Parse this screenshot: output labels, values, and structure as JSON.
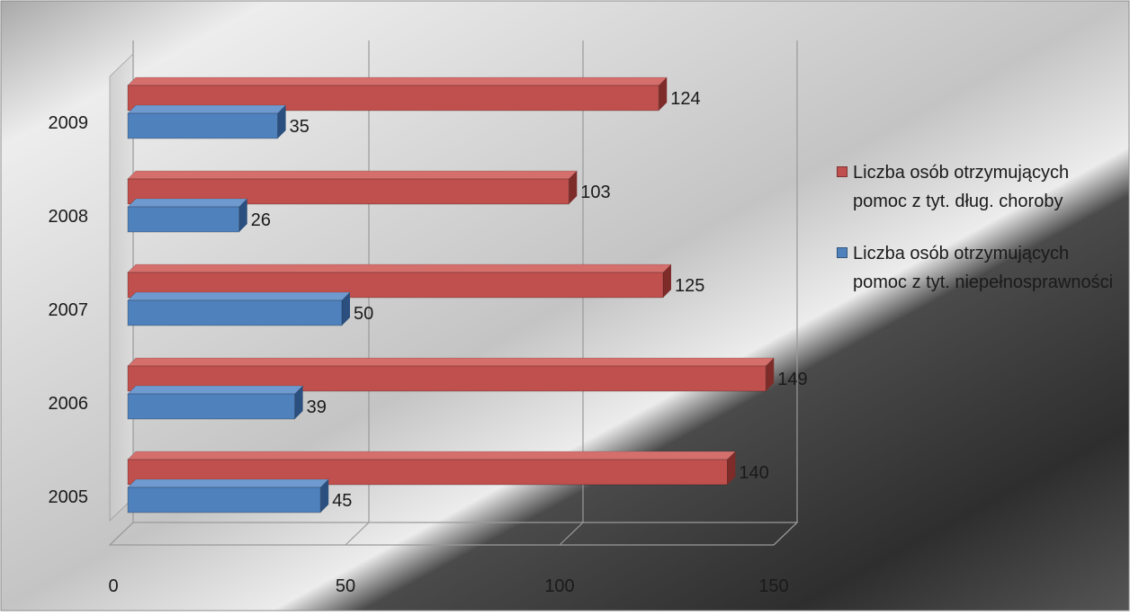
{
  "chart_data": {
    "type": "bar",
    "orientation": "horizontal",
    "three_d": true,
    "categories": [
      "2005",
      "2006",
      "2007",
      "2008",
      "2009"
    ],
    "series": [
      {
        "name": "Liczba osób otrzymujących pomoc z tyt. niepełnosprawności",
        "values": [
          45,
          39,
          50,
          26,
          35
        ],
        "color": "#4f81bd",
        "top_color": "#6f9ad0",
        "side_color": "#2b4f7e"
      },
      {
        "name": "Liczba osób otrzymujących pomoc z tyt. dług. choroby",
        "values": [
          140,
          149,
          125,
          103,
          124
        ],
        "color": "#c0504d",
        "top_color": "#d46f6c",
        "side_color": "#7e2c2a"
      }
    ],
    "legend_order": [
      1,
      0
    ],
    "x_ticks": [
      "0",
      "50",
      "100",
      "150"
    ],
    "xlim": [
      0,
      150
    ],
    "data_labels": true,
    "grid": true,
    "legend_position": "right",
    "title": "",
    "xlabel": "",
    "ylabel": ""
  }
}
